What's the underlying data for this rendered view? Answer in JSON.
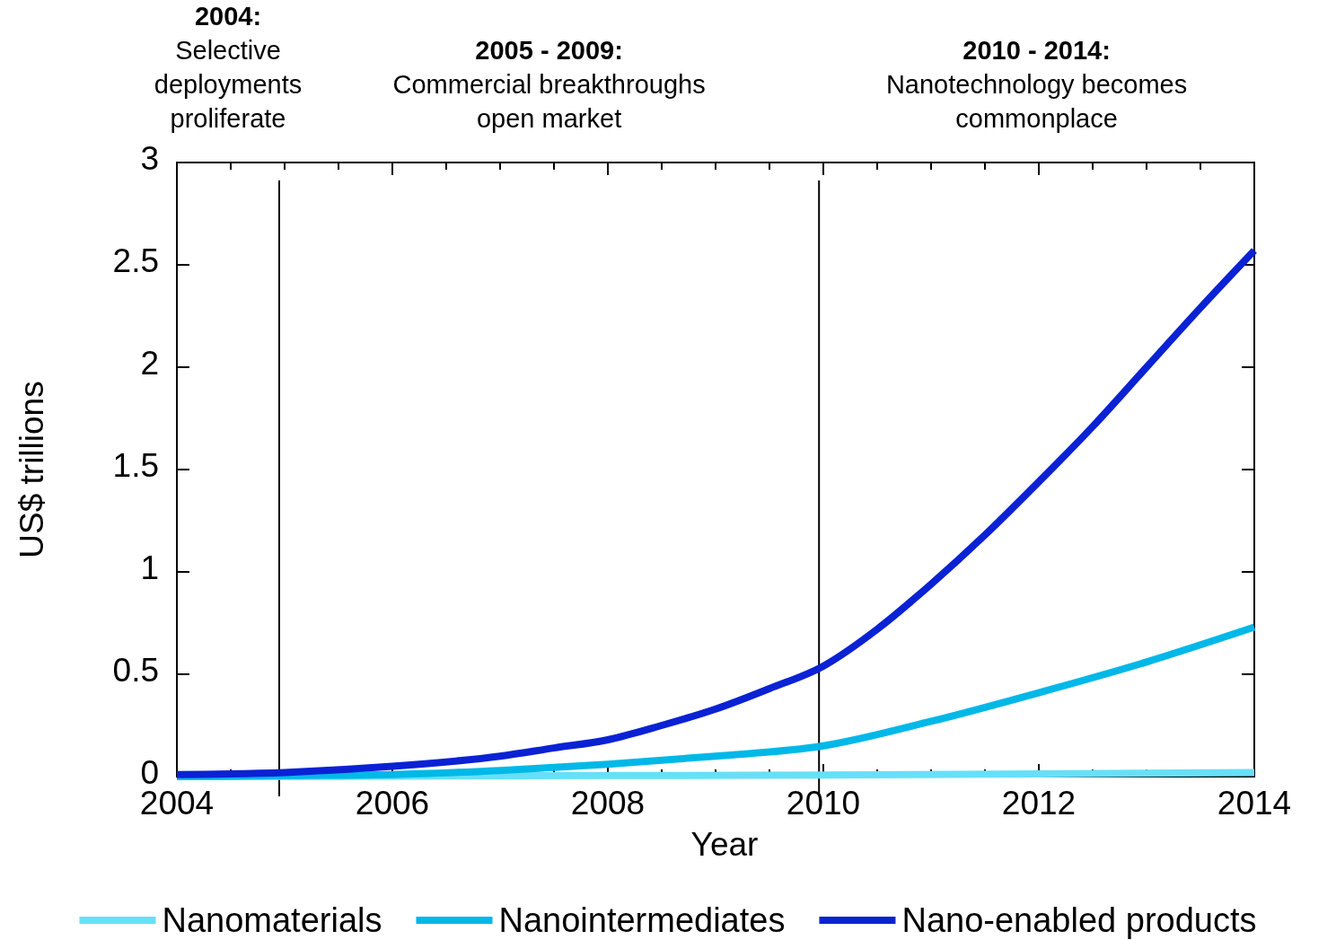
{
  "chart_data": {
    "type": "line",
    "xlabel": "Year",
    "ylabel": "US$ trillions",
    "annotations": [
      "2004:\nSelective\ndeployments\nproliferate",
      "2005 - 2009:\nCommercial breakthroughs\nopen market",
      "2010 - 2014:\nNanotechnology becomes\ncommonplace"
    ],
    "x": [
      2004,
      2005,
      2006,
      2007,
      2007.5,
      2008,
      2008.5,
      2009,
      2009.5,
      2010,
      2010.5,
      2011,
      2011.5,
      2012,
      2012.5,
      2013,
      2013.5,
      2014
    ],
    "series": [
      {
        "name": "Nanomaterials",
        "color": "#66e0f8",
        "x": [
          2004,
          2006,
          2008,
          2010,
          2012,
          2014
        ],
        "values": [
          0,
          0.002,
          0.005,
          0.008,
          0.013,
          0.02
        ]
      },
      {
        "name": "Nanointermediates",
        "color": "#00b8e8",
        "x": [
          2004,
          2005,
          2006,
          2007,
          2008,
          2009,
          2010,
          2011,
          2012,
          2013,
          2014
        ],
        "values": [
          0,
          0.005,
          0.01,
          0.03,
          0.06,
          0.1,
          0.15,
          0.27,
          0.41,
          0.56,
          0.73
        ]
      },
      {
        "name": "Nano-enabled products",
        "color": "#0a22d4",
        "values": [
          0.01,
          0.02,
          0.05,
          0.1,
          0.14,
          0.18,
          0.25,
          0.33,
          0.43,
          0.54,
          0.72,
          0.94,
          1.18,
          1.44,
          1.71,
          2.0,
          2.29,
          2.57
        ]
      }
    ],
    "xlim": [
      2004,
      2014
    ],
    "ylim": [
      0,
      3
    ],
    "xticks": [
      2004,
      {
        "value": 2004.5,
        "label": null
      },
      {
        "value": 2005,
        "label": null
      },
      {
        "value": 2005.5,
        "label": null
      },
      2006,
      {
        "value": 2006.5,
        "label": null
      },
      {
        "value": 2007,
        "label": null
      },
      {
        "value": 2007.5,
        "label": null
      },
      2008,
      {
        "value": 2008.5,
        "label": null
      },
      {
        "value": 2009,
        "label": null
      },
      {
        "value": 2009.5,
        "label": null
      },
      2010,
      {
        "value": 2010.5,
        "label": null
      },
      {
        "value": 2011,
        "label": null
      },
      {
        "value": 2011.5,
        "label": null
      },
      2012,
      {
        "value": 2012.5,
        "label": null
      },
      {
        "value": 2013,
        "label": null
      },
      {
        "value": 2013.5,
        "label": null
      },
      2014
    ],
    "yticks": [
      0,
      0.5,
      1,
      1.5,
      2,
      2.5,
      3
    ],
    "ref_lines": [
      {
        "axis": "x",
        "value": 2004.95,
        "color": "#000000"
      },
      {
        "axis": "x",
        "value": 2009.96,
        "color": "#000000"
      }
    ],
    "legend": "bottom",
    "grid": false,
    "marker": "none",
    "line_style": "solid"
  }
}
